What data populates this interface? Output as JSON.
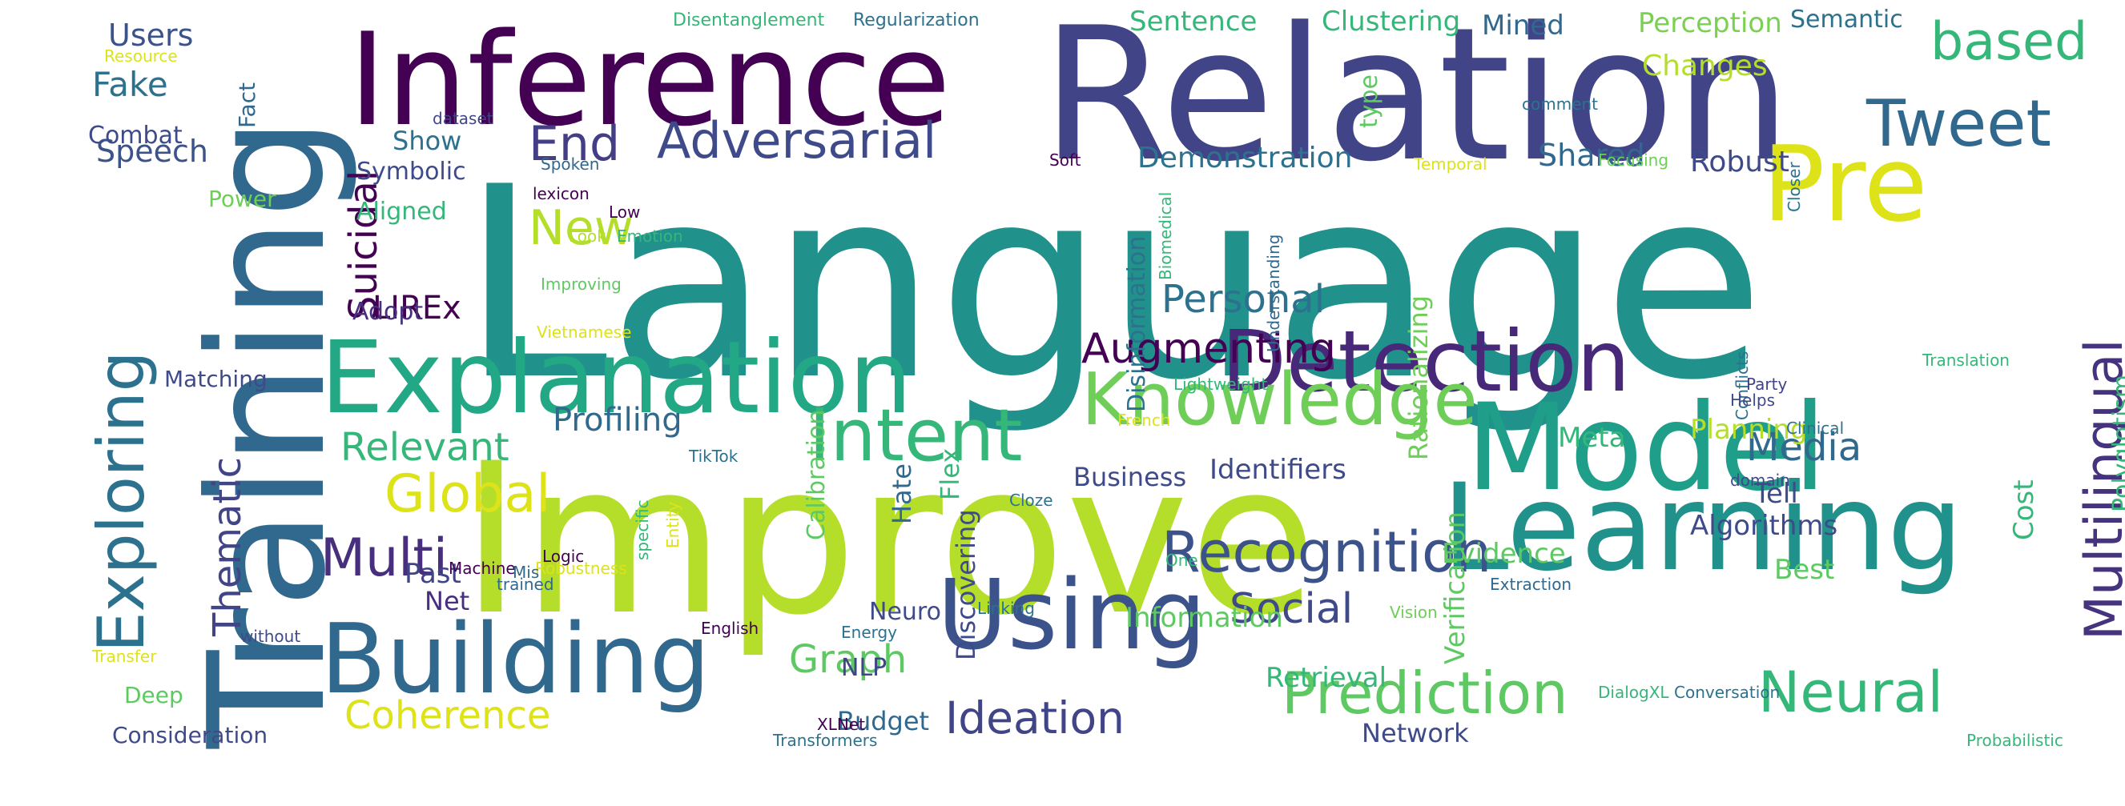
{
  "word_cloud": {
    "palette": {
      "purple": "#440154",
      "indigo": "#472f7d",
      "slate": "#414487",
      "blue": "#31688e",
      "teal": "#26828e",
      "sea": "#1f9e89",
      "green": "#35b779",
      "lime": "#6ece58",
      "yellowgreen": "#b5de2b",
      "yellow": "#fde725"
    },
    "words": [
      {
        "text": "Language",
        "color": "#21918c"
      },
      {
        "text": "Relation",
        "color": "#414487"
      },
      {
        "text": "Improve",
        "color": "#b5de2b"
      },
      {
        "text": "Training",
        "color": "#31688e"
      },
      {
        "text": "Inference",
        "color": "#440154"
      },
      {
        "text": "Learning",
        "color": "#21918c"
      },
      {
        "text": "Model",
        "color": "#1f9e89"
      },
      {
        "text": "Explanation",
        "color": "#22a884"
      },
      {
        "text": "Building",
        "color": "#31688e"
      },
      {
        "text": "Using",
        "color": "#3b528b"
      },
      {
        "text": "Detection",
        "color": "#482878"
      },
      {
        "text": "Knowledge",
        "color": "#6ece58"
      },
      {
        "text": "Intent",
        "color": "#35b779"
      },
      {
        "text": "Pre",
        "color": "#dde318"
      },
      {
        "text": "Exploring",
        "color": "#2c728e"
      },
      {
        "text": "Prediction",
        "color": "#5ec962"
      },
      {
        "text": "Recognition",
        "color": "#3b528b"
      },
      {
        "text": "Tweet",
        "color": "#31688e"
      },
      {
        "text": "Adversarial",
        "color": "#3e4a89"
      },
      {
        "text": "based",
        "color": "#35b779"
      },
      {
        "text": "Multilingual",
        "color": "#46337e"
      },
      {
        "text": "Neural",
        "color": "#35b779"
      },
      {
        "text": "Multi",
        "color": "#472f7d"
      },
      {
        "text": "Global",
        "color": "#dde318"
      },
      {
        "text": "Augmenting",
        "color": "#440154"
      },
      {
        "text": "End",
        "color": "#433e85"
      },
      {
        "text": "Ideation",
        "color": "#414487"
      },
      {
        "text": "New",
        "color": "#b5de2b"
      },
      {
        "text": "Thematic",
        "color": "#414487"
      },
      {
        "text": "Social",
        "color": "#3e4a89"
      },
      {
        "text": "Coherence",
        "color": "#dde318"
      },
      {
        "text": "Relevant",
        "color": "#35b779"
      },
      {
        "text": "Personal",
        "color": "#2c728e"
      },
      {
        "text": "Media",
        "color": "#31688e"
      },
      {
        "text": "Graph",
        "color": "#5ec962"
      },
      {
        "text": "Suicidal",
        "color": "#440154"
      },
      {
        "text": "LIREx",
        "color": "#440154"
      },
      {
        "text": "Fake",
        "color": "#2c728e"
      },
      {
        "text": "Users",
        "color": "#3b528b"
      },
      {
        "text": "Speech",
        "color": "#3b528b"
      },
      {
        "text": "Profiling",
        "color": "#31688e"
      },
      {
        "text": "Demonstration",
        "color": "#2c728e"
      },
      {
        "text": "Sentence",
        "color": "#35b779"
      },
      {
        "text": "Clustering",
        "color": "#35b779"
      },
      {
        "text": "Perception",
        "color": "#7ad151"
      },
      {
        "text": "Semantic",
        "color": "#2c728e"
      },
      {
        "text": "Mined",
        "color": "#31688e"
      },
      {
        "text": "Changes",
        "color": "#b5de2b"
      },
      {
        "text": "Shared",
        "color": "#31688e"
      },
      {
        "text": "Robust",
        "color": "#3e4a89"
      },
      {
        "text": "Identifiers",
        "color": "#3e4a89"
      },
      {
        "text": "Business",
        "color": "#3e4a89"
      },
      {
        "text": "Information",
        "color": "#5ec962"
      },
      {
        "text": "Retrieval",
        "color": "#35b779"
      },
      {
        "text": "Verification",
        "color": "#5ec962"
      },
      {
        "text": "Evidence",
        "color": "#5ec962"
      },
      {
        "text": "Algorithms",
        "color": "#3e4a89"
      },
      {
        "text": "Tell",
        "color": "#3e4a89"
      },
      {
        "text": "Best",
        "color": "#5ec962"
      },
      {
        "text": "Cost",
        "color": "#35b779"
      },
      {
        "text": "Polyglotism",
        "color": "#35b779"
      },
      {
        "text": "Planning",
        "color": "#b5de2b"
      },
      {
        "text": "Meta",
        "color": "#35b779"
      },
      {
        "text": "Rationalizing",
        "color": "#6ece58"
      },
      {
        "text": "Disinformation",
        "color": "#2c728e"
      },
      {
        "text": "Calibration",
        "color": "#5ec962"
      },
      {
        "text": "Hate",
        "color": "#31688e"
      },
      {
        "text": "Flex",
        "color": "#35b779"
      },
      {
        "text": "Discovering",
        "color": "#3e4a89"
      },
      {
        "text": "Neuro",
        "color": "#3e4a89"
      },
      {
        "text": "NLP",
        "color": "#414487"
      },
      {
        "text": "Budget",
        "color": "#31688e"
      },
      {
        "text": "Network",
        "color": "#3e4a89"
      },
      {
        "text": "Past",
        "color": "#414487"
      },
      {
        "text": "Net",
        "color": "#472f7d"
      },
      {
        "text": "Aligned",
        "color": "#35b779"
      },
      {
        "text": "Show",
        "color": "#2c728e"
      },
      {
        "text": "Symbolic",
        "color": "#3e4a89"
      },
      {
        "text": "Adopt",
        "color": "#472f7d"
      },
      {
        "text": "Matching",
        "color": "#3e4a89"
      },
      {
        "text": "Combat",
        "color": "#3e4a89"
      },
      {
        "text": "Fact",
        "color": "#31688e"
      },
      {
        "text": "Power",
        "color": "#6ece58"
      },
      {
        "text": "Deep",
        "color": "#5ec962"
      },
      {
        "text": "Consideration",
        "color": "#3e4a89"
      },
      {
        "text": "type",
        "color": "#5ec962"
      },
      {
        "text": "Disentanglement",
        "color": "#35b779"
      },
      {
        "text": "Regularization",
        "color": "#2c728e"
      },
      {
        "text": "Resource",
        "color": "#dde318"
      },
      {
        "text": "dataset",
        "color": "#414487"
      },
      {
        "text": "Spoken",
        "color": "#31688e"
      },
      {
        "text": "lexicon",
        "color": "#440154"
      },
      {
        "text": "Look",
        "color": "#b5de2b"
      },
      {
        "text": "Low",
        "color": "#440154"
      },
      {
        "text": "Emotion",
        "color": "#35b779"
      },
      {
        "text": "Improving",
        "color": "#5ec962"
      },
      {
        "text": "Vietnamese",
        "color": "#dde318"
      },
      {
        "text": "Soft",
        "color": "#440154"
      },
      {
        "text": "Temporal",
        "color": "#dde318"
      },
      {
        "text": "Focusing",
        "color": "#6ece58"
      },
      {
        "text": "comment",
        "color": "#2c728e"
      },
      {
        "text": "Closer",
        "color": "#2c728e"
      },
      {
        "text": "Biomedical",
        "color": "#35b779"
      },
      {
        "text": "Understanding",
        "color": "#31688e"
      },
      {
        "text": "Party",
        "color": "#414487"
      },
      {
        "text": "Translation",
        "color": "#35b779"
      },
      {
        "text": "Lightweight",
        "color": "#35b779"
      },
      {
        "text": "French",
        "color": "#dde318"
      },
      {
        "text": "Conflicts",
        "color": "#2c728e"
      },
      {
        "text": "Helps",
        "color": "#3e4a89"
      },
      {
        "text": "Clinical",
        "color": "#2c728e"
      },
      {
        "text": "domain",
        "color": "#3e4a89"
      },
      {
        "text": "TikTok",
        "color": "#2c728e"
      },
      {
        "text": "Cloze",
        "color": "#2c728e"
      },
      {
        "text": "One",
        "color": "#35b779"
      },
      {
        "text": "Entity",
        "color": "#dde318"
      },
      {
        "text": "specific",
        "color": "#35b779"
      },
      {
        "text": "Logic",
        "color": "#440154"
      },
      {
        "text": "Robustness",
        "color": "#dde318"
      },
      {
        "text": "Machine",
        "color": "#440154"
      },
      {
        "text": "Mis",
        "color": "#31688e"
      },
      {
        "text": "trained",
        "color": "#31688e"
      },
      {
        "text": "without",
        "color": "#3e4a89"
      },
      {
        "text": "English",
        "color": "#440154"
      },
      {
        "text": "Energy",
        "color": "#2c728e"
      },
      {
        "text": "Vision",
        "color": "#6ece58"
      },
      {
        "text": "Extraction",
        "color": "#31688e"
      },
      {
        "text": "Linking",
        "color": "#2c728e"
      },
      {
        "text": "Transfer",
        "color": "#dde318"
      },
      {
        "text": "DialogXL",
        "color": "#35b779"
      },
      {
        "text": "Conversation",
        "color": "#2c728e"
      },
      {
        "text": "XLNet",
        "color": "#440154"
      },
      {
        "text": "Transformers",
        "color": "#2c728e"
      },
      {
        "text": "Probabilistic",
        "color": "#35b779"
      }
    ]
  }
}
